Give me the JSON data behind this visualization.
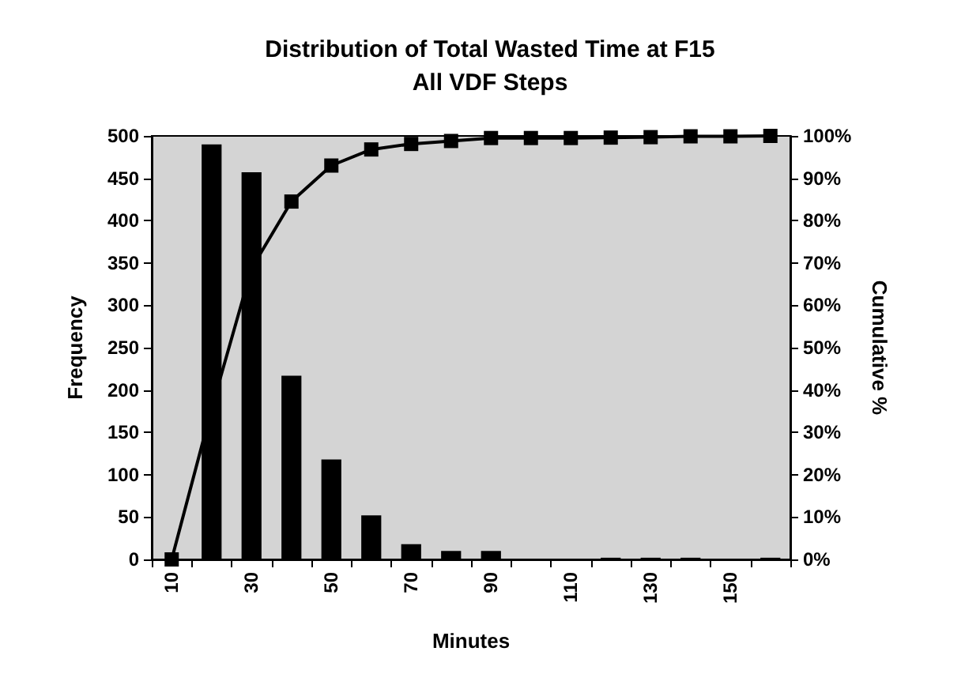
{
  "chart_data": {
    "type": "bar",
    "title": "Distribution of Total Wasted Time at F15\nAll VDF Steps",
    "xlabel": "Minutes",
    "ylabel": "Frequency",
    "y2label": "Cumulative %",
    "categories": [
      "10",
      null,
      "30",
      null,
      "50",
      null,
      "70",
      null,
      "90",
      null,
      "110",
      null,
      "130",
      null,
      "150",
      null
    ],
    "series": [
      {
        "color": "#000000",
        "values": [
          0,
          490,
          457,
          217,
          118,
          52,
          18,
          10,
          10,
          0,
          0,
          2,
          2,
          2,
          0,
          2
        ]
      },
      {
        "type": "line",
        "axis": "y2",
        "color": "#000000",
        "values": [
          0,
          35.6,
          68.7,
          84.5,
          93.0,
          96.8,
          98.1,
          98.8,
          99.5,
          99.5,
          99.5,
          99.6,
          99.7,
          99.9,
          99.9,
          100
        ]
      }
    ],
    "ylim": [
      0,
      500
    ],
    "yticks": [
      0,
      50,
      100,
      150,
      200,
      250,
      300,
      350,
      400,
      450,
      500
    ],
    "y2lim": [
      0,
      100
    ],
    "y2ticks": [
      {
        "value": 0,
        "label": "0%"
      },
      {
        "value": 10,
        "label": "10%"
      },
      {
        "value": 20,
        "label": "20%"
      },
      {
        "value": 30,
        "label": "30%"
      },
      {
        "value": 40,
        "label": "40%"
      },
      {
        "value": 50,
        "label": "50%"
      },
      {
        "value": 60,
        "label": "60%"
      },
      {
        "value": 70,
        "label": "70%"
      },
      {
        "value": 80,
        "label": "80%"
      },
      {
        "value": 90,
        "label": "90%"
      },
      {
        "value": 100,
        "label": "100%"
      }
    ],
    "marker": "square",
    "grid": false
  }
}
